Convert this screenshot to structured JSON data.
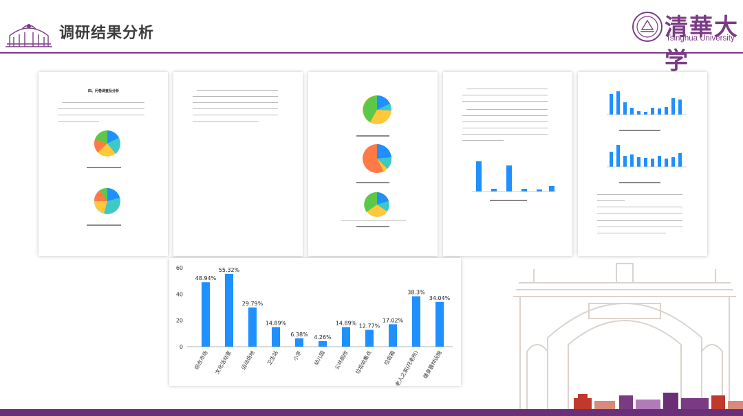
{
  "header": {
    "title": "调研结果分析",
    "university_cn": "清華大学",
    "university_en": "Tsinghua University"
  },
  "thumbnails": {
    "page1_heading": "四、问卷调查及分析"
  },
  "colors": {
    "brand_purple": "#7a3b84",
    "bar_blue": "#1e90ff"
  },
  "chart_data": {
    "type": "bar",
    "categories": [
      "综合市场",
      "文化活动室",
      "运动场地",
      "卫生站",
      "小学",
      "幼儿园",
      "公共厕所",
      "垃圾收集点",
      "垃圾箱",
      "老人之家(托老所)",
      "健身器材设施"
    ],
    "values": [
      48.94,
      55.32,
      29.79,
      14.89,
      6.38,
      4.26,
      14.89,
      12.77,
      17.02,
      38.3,
      34.04
    ],
    "value_labels": [
      "48.94%",
      "55.32%",
      "29.79%",
      "14.89%",
      "6.38%",
      "4.26%",
      "14.89%",
      "12.77%",
      "17.02%",
      "38.3%",
      "34.04%"
    ],
    "y_ticks": [
      "0",
      "20",
      "40",
      "60"
    ],
    "ylim": [
      0,
      60
    ],
    "grid": false,
    "color": "#1e90ff"
  }
}
